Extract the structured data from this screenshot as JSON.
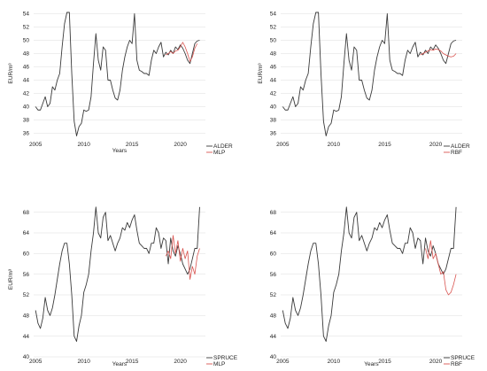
{
  "colors": {
    "actual": "#3a3a3a",
    "model": "#d9534f",
    "grid": "#dddddd"
  },
  "chart_data": [
    {
      "type": "line",
      "xlabel": "Years",
      "ylabel": "EUR/m³",
      "xlim": [
        2004.8,
        2022.6
      ],
      "ylim": [
        35,
        55
      ],
      "yticks": [
        36,
        38,
        40,
        42,
        44,
        46,
        48,
        50,
        52,
        54
      ],
      "xticks": [
        2005,
        2010,
        2015,
        2020
      ],
      "grid": true,
      "legend_position": "bottom-right",
      "series": [
        {
          "name": "ALDER",
          "role": "actual",
          "x": [
            2005.0,
            2005.25,
            2005.5,
            2005.75,
            2006.0,
            2006.25,
            2006.5,
            2006.75,
            2007.0,
            2007.25,
            2007.5,
            2007.75,
            2008.0,
            2008.25,
            2008.5,
            2008.75,
            2009.0,
            2009.25,
            2009.5,
            2009.75,
            2010.0,
            2010.25,
            2010.5,
            2010.75,
            2011.0,
            2011.25,
            2011.5,
            2011.75,
            2012.0,
            2012.25,
            2012.5,
            2012.75,
            2013.0,
            2013.25,
            2013.5,
            2013.75,
            2014.0,
            2014.25,
            2014.5,
            2014.75,
            2015.0,
            2015.25,
            2015.5,
            2015.75,
            2016.0,
            2016.25,
            2016.5,
            2016.75,
            2017.0,
            2017.25,
            2017.5,
            2017.75,
            2018.0,
            2018.25,
            2018.5,
            2018.75,
            2019.0,
            2019.25,
            2019.5,
            2019.75,
            2020.0,
            2020.25,
            2020.5,
            2020.75,
            2021.0,
            2021.25,
            2021.5,
            2021.75,
            2022.0
          ],
          "y": [
            40.0,
            39.5,
            39.5,
            40.5,
            41.5,
            40.0,
            40.5,
            43.0,
            42.5,
            44.0,
            45.0,
            49.0,
            52.5,
            54.2,
            54.2,
            45.0,
            37.8,
            35.6,
            37.0,
            37.5,
            39.5,
            39.3,
            39.5,
            41.5,
            46.5,
            51.0,
            47.0,
            45.5,
            49.0,
            48.5,
            44.0,
            44.0,
            42.5,
            41.3,
            41.0,
            42.5,
            45.5,
            47.5,
            49.0,
            50.0,
            49.5,
            54.0,
            47.0,
            45.5,
            45.3,
            45.0,
            45.0,
            44.7,
            47.0,
            48.5,
            48.0,
            49.0,
            49.7,
            47.5,
            48.2,
            47.8,
            48.5,
            48.0,
            49.0,
            48.6,
            49.3,
            48.8,
            48.0,
            47.0,
            46.5,
            48.0,
            49.5,
            49.9,
            50.0
          ]
        },
        {
          "name": "MLP",
          "role": "model",
          "x": [
            2018.5,
            2018.75,
            2019.0,
            2019.25,
            2019.5,
            2019.75,
            2020.0,
            2020.25,
            2020.5,
            2020.75,
            2021.0,
            2021.25,
            2021.5,
            2021.75
          ],
          "y": [
            47.8,
            48.0,
            48.3,
            48.0,
            48.4,
            48.5,
            49.0,
            49.7,
            49.0,
            48.0,
            46.8,
            47.5,
            48.8,
            49.5
          ]
        }
      ]
    },
    {
      "type": "line",
      "xlabel": "",
      "ylabel": "EUR/m³",
      "xlim": [
        2004.8,
        2022.6
      ],
      "ylim": [
        35,
        55
      ],
      "yticks": [
        36,
        38,
        40,
        42,
        44,
        46,
        48,
        50,
        52,
        54
      ],
      "xticks": [
        2005,
        2010,
        2015,
        2020
      ],
      "grid": true,
      "legend_position": "bottom-right",
      "series": [
        {
          "name": "ALDER",
          "role": "actual",
          "x": [
            2005.0,
            2005.25,
            2005.5,
            2005.75,
            2006.0,
            2006.25,
            2006.5,
            2006.75,
            2007.0,
            2007.25,
            2007.5,
            2007.75,
            2008.0,
            2008.25,
            2008.5,
            2008.75,
            2009.0,
            2009.25,
            2009.5,
            2009.75,
            2010.0,
            2010.25,
            2010.5,
            2010.75,
            2011.0,
            2011.25,
            2011.5,
            2011.75,
            2012.0,
            2012.25,
            2012.5,
            2012.75,
            2013.0,
            2013.25,
            2013.5,
            2013.75,
            2014.0,
            2014.25,
            2014.5,
            2014.75,
            2015.0,
            2015.25,
            2015.5,
            2015.75,
            2016.0,
            2016.25,
            2016.5,
            2016.75,
            2017.0,
            2017.25,
            2017.5,
            2017.75,
            2018.0,
            2018.25,
            2018.5,
            2018.75,
            2019.0,
            2019.25,
            2019.5,
            2019.75,
            2020.0,
            2020.25,
            2020.5,
            2020.75,
            2021.0,
            2021.25,
            2021.5,
            2021.75,
            2022.0
          ],
          "y": [
            40.0,
            39.5,
            39.5,
            40.5,
            41.5,
            40.0,
            40.5,
            43.0,
            42.5,
            44.0,
            45.0,
            49.0,
            52.5,
            54.2,
            54.2,
            45.0,
            37.8,
            35.6,
            37.0,
            37.5,
            39.5,
            39.3,
            39.5,
            41.5,
            46.5,
            51.0,
            47.0,
            45.5,
            49.0,
            48.5,
            44.0,
            44.0,
            42.5,
            41.3,
            41.0,
            42.5,
            45.5,
            47.5,
            49.0,
            50.0,
            49.5,
            54.0,
            47.0,
            45.5,
            45.3,
            45.0,
            45.0,
            44.7,
            47.0,
            48.5,
            48.0,
            49.0,
            49.7,
            47.5,
            48.2,
            47.8,
            48.5,
            48.0,
            49.0,
            48.6,
            49.3,
            48.8,
            48.0,
            47.0,
            46.5,
            48.0,
            49.5,
            49.9,
            50.0
          ]
        },
        {
          "name": "RBF",
          "role": "model",
          "x": [
            2018.5,
            2018.75,
            2019.0,
            2019.25,
            2019.5,
            2019.75,
            2020.0,
            2020.25,
            2020.5,
            2020.75,
            2021.0,
            2021.25,
            2021.5,
            2021.75,
            2022.0
          ],
          "y": [
            47.8,
            48.0,
            48.2,
            48.4,
            48.6,
            48.5,
            48.7,
            48.6,
            48.4,
            48.0,
            47.8,
            47.6,
            47.5,
            47.6,
            48.0
          ]
        }
      ]
    },
    {
      "type": "line",
      "xlabel": "Years",
      "ylabel": "EUR/m³",
      "xlim": [
        2004.8,
        2022.6
      ],
      "ylim": [
        40,
        70
      ],
      "yticks": [
        40,
        44,
        48,
        52,
        56,
        60,
        64,
        68
      ],
      "xticks": [
        2005,
        2010,
        2015,
        2020
      ],
      "grid": true,
      "legend_position": "bottom-right",
      "series": [
        {
          "name": "SPRUCE",
          "role": "actual",
          "x": [
            2005.0,
            2005.25,
            2005.5,
            2005.75,
            2006.0,
            2006.25,
            2006.5,
            2006.75,
            2007.0,
            2007.25,
            2007.5,
            2007.75,
            2008.0,
            2008.25,
            2008.5,
            2008.75,
            2009.0,
            2009.25,
            2009.5,
            2009.75,
            2010.0,
            2010.25,
            2010.5,
            2010.75,
            2011.0,
            2011.25,
            2011.5,
            2011.75,
            2012.0,
            2012.25,
            2012.5,
            2012.75,
            2013.0,
            2013.25,
            2013.5,
            2013.75,
            2014.0,
            2014.25,
            2014.5,
            2014.75,
            2015.0,
            2015.25,
            2015.5,
            2015.75,
            2016.0,
            2016.25,
            2016.5,
            2016.75,
            2017.0,
            2017.25,
            2017.5,
            2017.75,
            2018.0,
            2018.25,
            2018.5,
            2018.75,
            2019.0,
            2019.25,
            2019.5,
            2019.75,
            2020.0,
            2020.25,
            2020.5,
            2020.75,
            2021.0,
            2021.25,
            2021.5,
            2021.75,
            2022.0
          ],
          "y": [
            49.0,
            46.5,
            45.5,
            47.5,
            51.5,
            49.0,
            48.0,
            49.5,
            52.0,
            55.0,
            58.0,
            60.5,
            62.0,
            62.0,
            58.0,
            52.0,
            44.0,
            43.0,
            46.0,
            48.0,
            52.5,
            54.0,
            56.0,
            60.5,
            64.0,
            69.0,
            64.0,
            63.0,
            67.0,
            68.0,
            62.5,
            63.5,
            62.0,
            60.5,
            62.0,
            63.0,
            65.0,
            64.5,
            66.0,
            65.0,
            66.5,
            67.5,
            64.5,
            62.0,
            61.5,
            61.0,
            61.0,
            60.0,
            62.0,
            62.0,
            65.0,
            64.0,
            61.0,
            63.0,
            62.5,
            58.0,
            63.0,
            60.5,
            59.5,
            61.5,
            60.0,
            58.0,
            57.0,
            56.0,
            57.0,
            59.0,
            61.0,
            61.0,
            69.0
          ]
        },
        {
          "name": "MLP",
          "role": "model",
          "x": [
            2018.5,
            2018.75,
            2019.0,
            2019.25,
            2019.5,
            2019.75,
            2020.0,
            2020.25,
            2020.5,
            2020.75,
            2021.0,
            2021.25,
            2021.5,
            2021.75,
            2022.0
          ],
          "y": [
            59.5,
            60.5,
            59.0,
            63.5,
            60.0,
            62.5,
            58.5,
            61.0,
            59.0,
            60.5,
            55.0,
            57.5,
            56.0,
            59.5,
            61.0
          ]
        }
      ]
    },
    {
      "type": "line",
      "xlabel": "Years",
      "ylabel": "",
      "xlim": [
        2004.8,
        2022.6
      ],
      "ylim": [
        40,
        70
      ],
      "yticks": [
        40,
        44,
        48,
        52,
        56,
        60,
        64,
        68
      ],
      "xticks": [
        2005,
        2010,
        2015,
        2020
      ],
      "grid": true,
      "legend_position": "bottom-right",
      "series": [
        {
          "name": "SPRUCE",
          "role": "actual",
          "x": [
            2005.0,
            2005.25,
            2005.5,
            2005.75,
            2006.0,
            2006.25,
            2006.5,
            2006.75,
            2007.0,
            2007.25,
            2007.5,
            2007.75,
            2008.0,
            2008.25,
            2008.5,
            2008.75,
            2009.0,
            2009.25,
            2009.5,
            2009.75,
            2010.0,
            2010.25,
            2010.5,
            2010.75,
            2011.0,
            2011.25,
            2011.5,
            2011.75,
            2012.0,
            2012.25,
            2012.5,
            2012.75,
            2013.0,
            2013.25,
            2013.5,
            2013.75,
            2014.0,
            2014.25,
            2014.5,
            2014.75,
            2015.0,
            2015.25,
            2015.5,
            2015.75,
            2016.0,
            2016.25,
            2016.5,
            2016.75,
            2017.0,
            2017.25,
            2017.5,
            2017.75,
            2018.0,
            2018.25,
            2018.5,
            2018.75,
            2019.0,
            2019.25,
            2019.5,
            2019.75,
            2020.0,
            2020.25,
            2020.5,
            2020.75,
            2021.0,
            2021.25,
            2021.5,
            2021.75,
            2022.0
          ],
          "y": [
            49.0,
            46.5,
            45.5,
            47.5,
            51.5,
            49.0,
            48.0,
            49.5,
            52.0,
            55.0,
            58.0,
            60.5,
            62.0,
            62.0,
            58.0,
            52.0,
            44.0,
            43.0,
            46.0,
            48.0,
            52.5,
            54.0,
            56.0,
            60.5,
            64.0,
            69.0,
            64.0,
            63.0,
            67.0,
            68.0,
            62.5,
            63.5,
            62.0,
            60.5,
            62.0,
            63.0,
            65.0,
            64.5,
            66.0,
            65.0,
            66.5,
            67.5,
            64.5,
            62.0,
            61.5,
            61.0,
            61.0,
            60.0,
            62.0,
            62.0,
            65.0,
            64.0,
            61.0,
            63.0,
            62.5,
            58.0,
            63.0,
            60.5,
            59.5,
            61.5,
            60.0,
            58.0,
            57.0,
            56.0,
            57.0,
            59.0,
            61.0,
            61.0,
            69.0
          ]
        },
        {
          "name": "RBF",
          "role": "model",
          "x": [
            2019.0,
            2019.25,
            2019.5,
            2019.75,
            2020.0,
            2020.25,
            2020.5,
            2020.75,
            2021.0,
            2021.25,
            2021.5,
            2021.75,
            2022.0
          ],
          "y": [
            61.0,
            59.0,
            62.5,
            59.0,
            60.0,
            58.0,
            56.0,
            56.5,
            53.0,
            52.0,
            52.5,
            54.0,
            56.0
          ]
        }
      ]
    }
  ]
}
